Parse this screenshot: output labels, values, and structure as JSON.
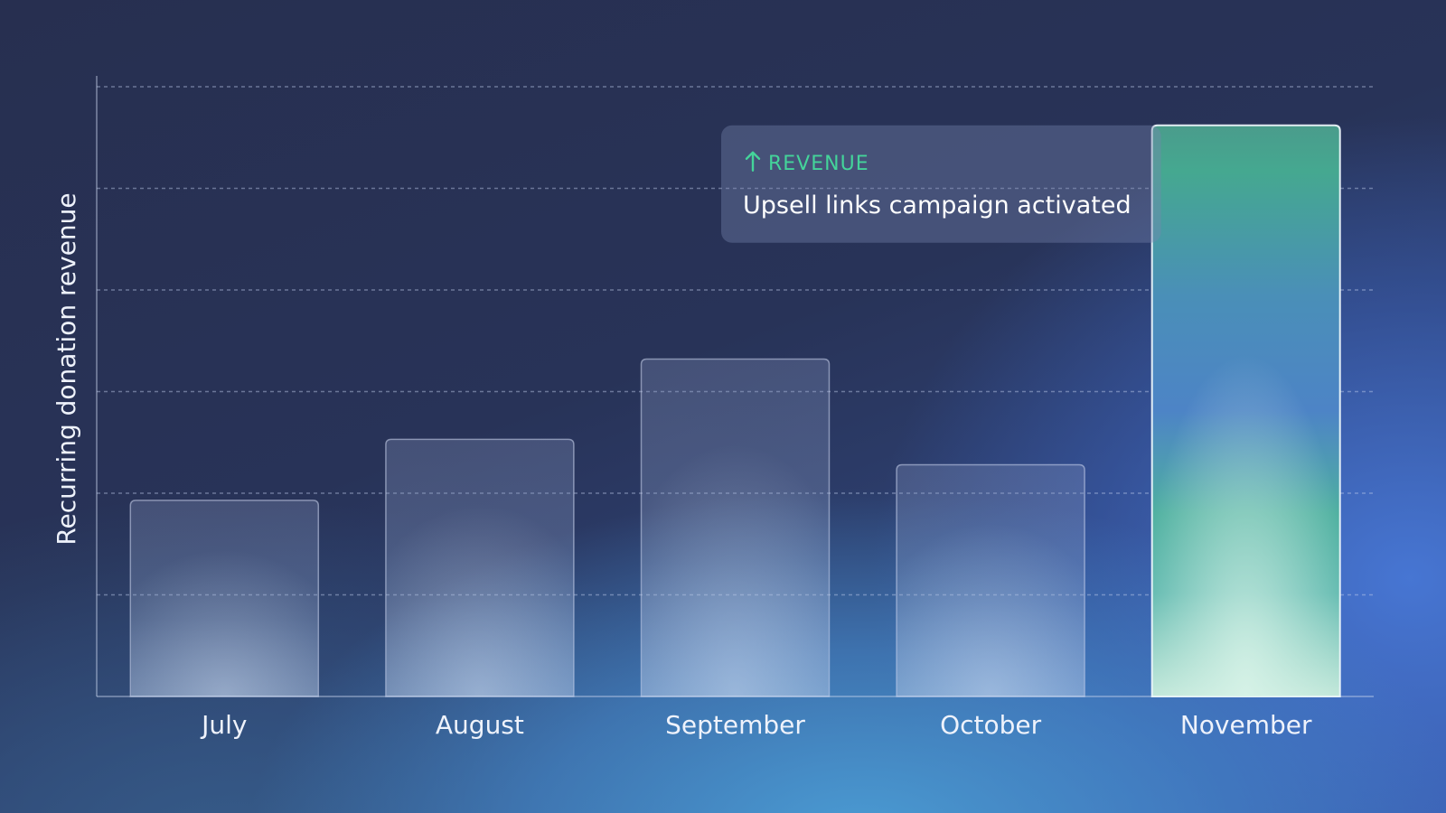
{
  "chart_data": {
    "type": "bar",
    "categories": [
      "July",
      "August",
      "September",
      "October",
      "November"
    ],
    "values": [
      1.93,
      2.53,
      3.32,
      2.28,
      5.62
    ],
    "ylabel": "Recurring donation revenue",
    "ylim": [
      0,
      6
    ],
    "grid": true,
    "highlight": "November",
    "annotation": {
      "tag": "REVENUE",
      "tag_icon": "arrow-up-icon",
      "text": "Upsell links campaign activated",
      "target": "November"
    },
    "colors": {
      "bar": "#8aa0c8",
      "highlight_top": "#45a890",
      "highlight_mid": "#4d86c4",
      "highlight_bottom": "#c8ecde",
      "annotation_tag": "#44d49a"
    }
  }
}
